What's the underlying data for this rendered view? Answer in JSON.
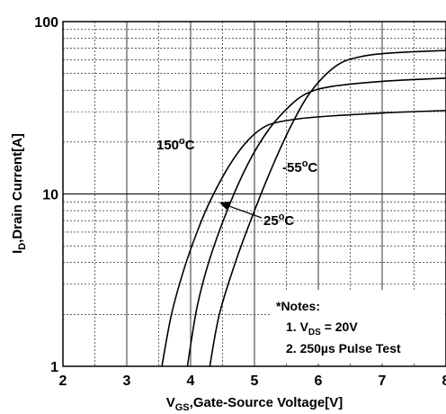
{
  "chart_data": {
    "type": "line",
    "xlabel": {
      "main": "V",
      "sub": "GS",
      "rest": ",Gate-Source Voltage[V]"
    },
    "ylabel": {
      "main": "I",
      "sub": "D",
      "rest": ",Drain Current[A]"
    },
    "xlim": [
      2,
      8
    ],
    "ylim": [
      1,
      100
    ],
    "yscale": "log",
    "grid": true,
    "xticks": [
      "2",
      "3",
      "4",
      "5",
      "6",
      "7",
      "8"
    ],
    "yticks": [
      "1",
      "10",
      "100"
    ],
    "series": [
      {
        "name": "150°C",
        "label_main": "150",
        "label_sup": "o",
        "label_rest": "C",
        "x": [
          3.55,
          3.7,
          3.9,
          4.1,
          4.3,
          4.6,
          4.9,
          5.2,
          5.6,
          6.0,
          7.0,
          8.0
        ],
        "y": [
          1.0,
          2.0,
          3.7,
          6.0,
          9.0,
          14.5,
          20.5,
          25.0,
          27.0,
          28.0,
          29.5,
          30.5
        ]
      },
      {
        "name": "25°C",
        "label_main": "25",
        "label_sup": "o",
        "label_rest": "C",
        "x": [
          3.95,
          4.1,
          4.3,
          4.6,
          4.9,
          5.2,
          5.5,
          5.8,
          6.2,
          7.0,
          8.0
        ],
        "y": [
          1.0,
          2.2,
          4.2,
          8.5,
          15.0,
          23.0,
          31.0,
          38.0,
          42.0,
          45.0,
          47.0
        ]
      },
      {
        "name": "-55°C",
        "label_main": "-55",
        "label_sup": "o",
        "label_rest": "C",
        "x": [
          4.3,
          4.45,
          4.7,
          5.0,
          5.3,
          5.6,
          5.9,
          6.3,
          6.7,
          7.2,
          8.0
        ],
        "y": [
          1.0,
          2.0,
          4.0,
          8.0,
          15.0,
          26.0,
          40.0,
          56.0,
          63.0,
          66.0,
          68.0
        ]
      }
    ],
    "notes": {
      "title": "*Notes:",
      "line1": {
        "prefix": "1. V",
        "sub": "DS",
        "rest": " = 20V"
      },
      "line2": "2. 250µs Pulse Test"
    }
  }
}
